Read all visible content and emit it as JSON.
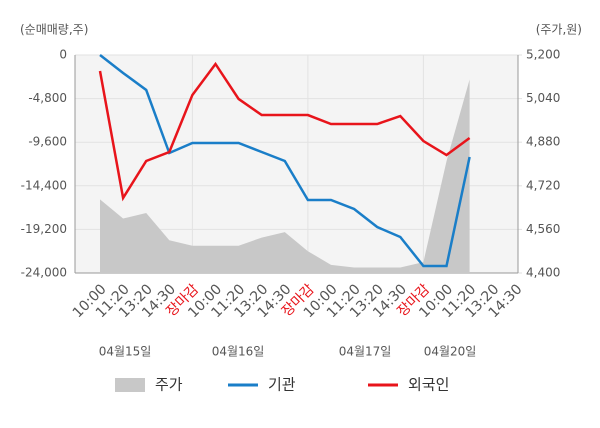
{
  "chart_data": {
    "type": "line",
    "y_axis_label": "(순매매량,주)",
    "y2_axis_label": "(주가,원)",
    "categories": [
      "10:00",
      "11:20",
      "13:20",
      "14:30",
      "장마감",
      "10:00",
      "11:20",
      "13:20",
      "14:30",
      "장마감",
      "10:00",
      "11:20",
      "13:20",
      "14:30",
      "장마감",
      "10:00",
      "11:20",
      "13:20",
      "14:30"
    ],
    "highlight_indices": [
      4,
      9,
      14
    ],
    "highlight_color": "#e8141b",
    "date_labels": [
      "04월15일",
      "04월16일",
      "04월17일",
      "04월20일"
    ],
    "ylim": [
      -24000,
      0
    ],
    "yticks": [
      0,
      {
        "value": -4800,
        "label": "-4,800"
      },
      {
        "value": -9600,
        "label": "-9,600"
      },
      {
        "value": -14400,
        "label": "-14,400"
      },
      {
        "value": -19200,
        "label": "-19,200"
      },
      {
        "value": -24000,
        "label": "-24,000"
      }
    ],
    "y2lim": [
      4400,
      5200
    ],
    "y2ticks": [
      {
        "value": 5200,
        "label": "5,200"
      },
      {
        "value": 5040,
        "label": "5,040"
      },
      {
        "value": 4880,
        "label": "4,880"
      },
      {
        "value": 4720,
        "label": "4,720"
      },
      {
        "value": 4560,
        "label": "4,560"
      },
      {
        "value": 4400,
        "label": "4,400"
      }
    ],
    "grid": true,
    "series": [
      {
        "name": "주가",
        "color": "#c8c8c8",
        "kind": "area",
        "axis": "y2",
        "values": [
          4670,
          4600,
          4620,
          4520,
          4500,
          4500,
          4500,
          4530,
          4550,
          4480,
          4430,
          4420,
          4420,
          4420,
          4440,
          4810,
          5110,
          null,
          null
        ]
      },
      {
        "name": "기관",
        "color": "#1a7ec8",
        "kind": "line",
        "values": [
          0,
          -1980,
          -3850,
          -10790,
          -9690,
          -9690,
          -9690,
          -10680,
          -11670,
          -15960,
          -15960,
          -16950,
          -18940,
          -20040,
          -23230,
          -23230,
          -11230,
          null,
          null
        ]
      },
      {
        "name": "외국인",
        "color": "#e8141b",
        "kind": "line",
        "values": [
          -1760,
          -15740,
          -11670,
          -10680,
          -4400,
          -990,
          -4840,
          -6610,
          -6610,
          -6610,
          -7600,
          -7600,
          -7600,
          -6720,
          -9470,
          -11010,
          -9140,
          null,
          null
        ]
      }
    ]
  }
}
